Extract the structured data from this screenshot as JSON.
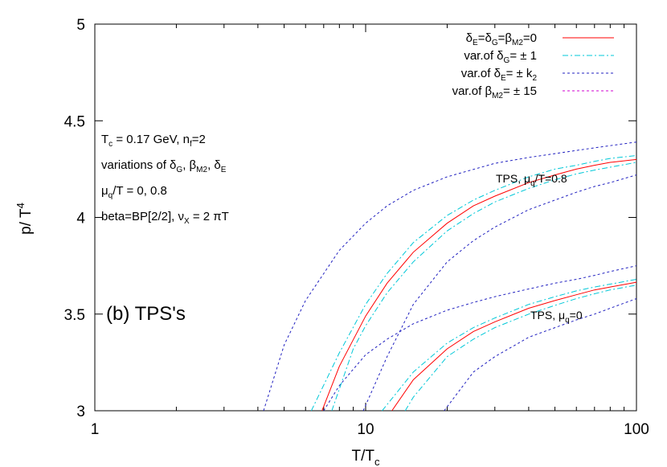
{
  "chart_data": {
    "type": "line",
    "xscale": "log",
    "xlim": [
      1,
      100
    ],
    "ylim": [
      3,
      5
    ],
    "grid": false,
    "legend_position": "top-right",
    "x_tick_labels": [
      "1",
      "10",
      "100"
    ],
    "y_tick_labels": [
      "3",
      "3.5",
      "4",
      "4.5",
      "5"
    ],
    "xlabel": "T/T_c",
    "xlabel_main": "T/T",
    "xlabel_sub": "c",
    "ylabel": "p/ T^4",
    "ylabel_main": "p/ T",
    "ylabel_sup": "4",
    "panel_label": "(b)  TPS's",
    "notes": [
      "T_c = 0.17 GeV, n_f=2",
      "variations of δ_G, β_M2, δ_E",
      "μ_q/T = 0, 0.8",
      "beta=BP[2/2], ν_X = 2 πT"
    ],
    "curve_labels": [
      "TPS, μ_q/T=0.8",
      "TPS, μ_q=0"
    ],
    "colors": {
      "central": "#ff0000",
      "var_deltaG": "#00c8d8",
      "var_deltaE": "#2020c0",
      "var_betaM2": "#d000d0"
    },
    "legend": [
      {
        "label": "δ_E=δ_G=β_M2=0",
        "color": "#ff0000",
        "style": "solid"
      },
      {
        "label": "var.of δ_G= ± 1",
        "color": "#00c8d8",
        "style": "dashdot"
      },
      {
        "label": "var.of δ_E= ± k_2",
        "color": "#2020c0",
        "style": "dotted"
      },
      {
        "label": "var.of β_M2= ± 15",
        "color": "#d000d0",
        "style": "dotted"
      }
    ],
    "series": [
      {
        "group": "mu_q/T=0.8",
        "legend_index": 0,
        "x": [
          6.9,
          8,
          10,
          12,
          15,
          20,
          25,
          30,
          40,
          50,
          60,
          70,
          80,
          100
        ],
        "y": [
          3.0,
          3.23,
          3.49,
          3.66,
          3.82,
          3.97,
          4.06,
          4.11,
          4.18,
          4.22,
          4.25,
          4.27,
          4.285,
          4.3
        ]
      },
      {
        "group": "mu_q/T=0.8",
        "legend_index": 1,
        "x": [
          6.3,
          8,
          10,
          12,
          15,
          20,
          25,
          30,
          40,
          50,
          60,
          70,
          80,
          100
        ],
        "y": [
          3.0,
          3.3,
          3.55,
          3.71,
          3.87,
          4.01,
          4.09,
          4.14,
          4.21,
          4.25,
          4.27,
          4.29,
          4.305,
          4.32
        ]
      },
      {
        "group": "mu_q/T=0.8",
        "legend_index": 1,
        "x": [
          7.5,
          9,
          10,
          12,
          15,
          20,
          25,
          30,
          40,
          50,
          60,
          70,
          80,
          100
        ],
        "y": [
          3.0,
          3.32,
          3.44,
          3.61,
          3.77,
          3.93,
          4.02,
          4.08,
          4.15,
          4.195,
          4.225,
          4.245,
          4.26,
          4.285
        ]
      },
      {
        "group": "mu_q/T=0.8",
        "legend_index": 2,
        "x": [
          4.2,
          5,
          6,
          8,
          10,
          12,
          15,
          20,
          30,
          40,
          50,
          70,
          100
        ],
        "y": [
          3.0,
          3.34,
          3.57,
          3.83,
          3.97,
          4.06,
          4.14,
          4.21,
          4.28,
          4.31,
          4.33,
          4.36,
          4.39
        ]
      },
      {
        "group": "mu_q/T=0.8",
        "legend_index": 2,
        "x": [
          9.8,
          12,
          15,
          20,
          25,
          30,
          40,
          50,
          60,
          70,
          80,
          100
        ],
        "y": [
          3.0,
          3.28,
          3.55,
          3.77,
          3.88,
          3.95,
          4.04,
          4.09,
          4.13,
          4.16,
          4.18,
          4.22
        ]
      },
      {
        "group": "mu_q=0",
        "legend_index": 0,
        "x": [
          12.5,
          15,
          20,
          25,
          30,
          40,
          50,
          60,
          70,
          80,
          100
        ],
        "y": [
          3.0,
          3.16,
          3.32,
          3.41,
          3.46,
          3.53,
          3.57,
          3.6,
          3.625,
          3.64,
          3.665
        ]
      },
      {
        "group": "mu_q=0",
        "legend_index": 1,
        "x": [
          11.5,
          15,
          20,
          25,
          30,
          40,
          50,
          60,
          70,
          80,
          100
        ],
        "y": [
          3.0,
          3.2,
          3.35,
          3.43,
          3.48,
          3.55,
          3.59,
          3.62,
          3.64,
          3.655,
          3.68
        ]
      },
      {
        "group": "mu_q=0",
        "legend_index": 1,
        "x": [
          14,
          15,
          20,
          25,
          30,
          40,
          50,
          60,
          70,
          80,
          100
        ],
        "y": [
          3.0,
          3.07,
          3.28,
          3.37,
          3.43,
          3.5,
          3.545,
          3.58,
          3.605,
          3.625,
          3.65
        ]
      },
      {
        "group": "mu_q=0",
        "legend_index": 2,
        "x": [
          7,
          8,
          10,
          12,
          15,
          20,
          25,
          30,
          40,
          50,
          60,
          70,
          80,
          100
        ],
        "y": [
          3.0,
          3.13,
          3.29,
          3.37,
          3.45,
          3.52,
          3.56,
          3.59,
          3.63,
          3.66,
          3.68,
          3.7,
          3.72,
          3.75
        ]
      },
      {
        "group": "mu_q=0",
        "legend_index": 2,
        "x": [
          19.5,
          25,
          30,
          40,
          50,
          60,
          70,
          80,
          100
        ],
        "y": [
          3.0,
          3.2,
          3.28,
          3.38,
          3.43,
          3.47,
          3.5,
          3.53,
          3.58
        ]
      }
    ]
  }
}
